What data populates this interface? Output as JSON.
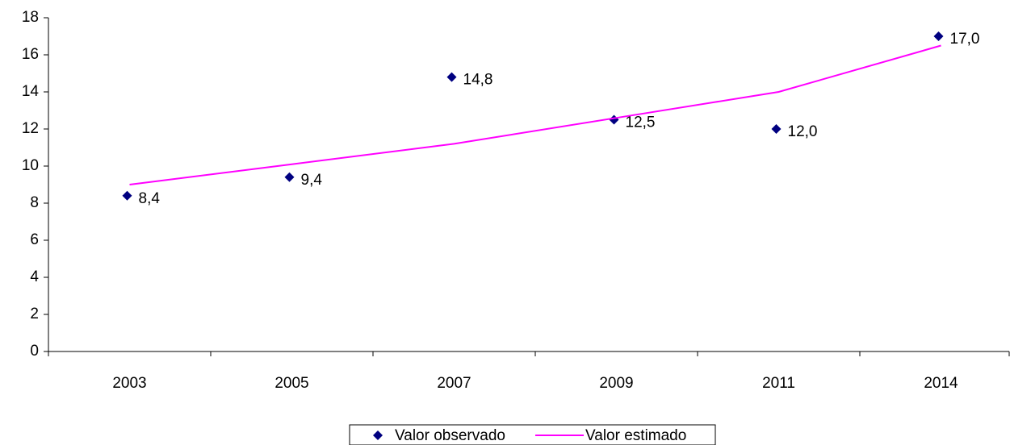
{
  "chart_data": {
    "type": "line",
    "categories": [
      "2003",
      "2005",
      "2007",
      "2009",
      "2011",
      "2014"
    ],
    "series": [
      {
        "name": "Valor observado",
        "color": "#000080",
        "mode": "markers",
        "marker": "diamond",
        "values": [
          8.4,
          9.4,
          14.8,
          12.5,
          12.0,
          17.0
        ],
        "value_labels": [
          "8,4",
          "9,4",
          "14,8",
          "12,5",
          "12,0",
          "17,0"
        ]
      },
      {
        "name": "Valor estimado",
        "color": "#ff00ff",
        "mode": "lines",
        "values": [
          9.0,
          10.1,
          11.2,
          12.6,
          14.0,
          16.5
        ]
      }
    ],
    "ylim": [
      0,
      18
    ],
    "yticks": [
      0,
      2,
      4,
      6,
      8,
      10,
      12,
      14,
      16,
      18
    ],
    "grid": false,
    "legend": "bottom"
  }
}
